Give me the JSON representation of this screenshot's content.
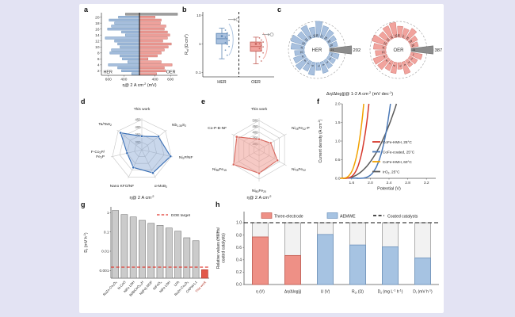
{
  "page": {
    "background": "#E3E3F3",
    "canvas_background": "#FFFFFF"
  },
  "chart_data": [
    {
      "panel": "a",
      "type": "bar-mirrored",
      "xlabel": "η@ 2 A cm^-2^ (mV)",
      "left_label": "HER",
      "right_label": "OER",
      "xticks_left": [
        600,
        400
      ],
      "xticks_right": [
        400,
        600
      ],
      "ytick_rows": [
        2,
        4,
        6,
        8,
        10,
        12,
        14,
        16,
        18,
        20
      ],
      "vmin": 200,
      "vmax": 690,
      "colors": {
        "her": "#A8C0DE",
        "her_border": "#5F88B5",
        "oer": "#F1A39D",
        "oer_border": "#C4625B",
        "highlight": "#9E9E9E",
        "highlight_border": "#6F6F6F"
      },
      "rows": [
        {
          "y": 1,
          "her": 300,
          "oer": 420
        },
        {
          "y": 2,
          "her": 430,
          "oer": 540
        },
        {
          "y": 3,
          "her": 480,
          "oer": 520
        },
        {
          "y": 4,
          "her": 600,
          "oer": 620
        },
        {
          "y": 5,
          "her": 350,
          "oer": 480
        },
        {
          "y": 6,
          "her": 420,
          "oer": 310
        },
        {
          "y": 7,
          "her": 450,
          "oer": 430
        },
        {
          "y": 8,
          "her": 580,
          "oer": 480
        },
        {
          "y": 9,
          "her": 560,
          "oer": 520
        },
        {
          "y": 10,
          "her": 450,
          "oer": 570
        },
        {
          "y": 11,
          "her": 480,
          "oer": 610
        },
        {
          "y": 12,
          "her": 520,
          "oer": 500
        },
        {
          "y": 13,
          "her": 640,
          "oer": 560
        },
        {
          "y": 14,
          "her": 380,
          "oer": 590
        },
        {
          "y": 15,
          "her": 430,
          "oer": 560
        },
        {
          "y": 16,
          "her": 610,
          "oer": 520
        },
        {
          "y": 17,
          "her": 560,
          "oer": 540
        },
        {
          "y": 18,
          "her": 520,
          "oer": 470
        },
        {
          "y": 19,
          "her": 590,
          "oer": 480
        },
        {
          "y": 20,
          "her": 470,
          "oer": 400
        },
        {
          "y": 21,
          "her": 380,
          "oer": 690,
          "highlight": true
        }
      ]
    },
    {
      "panel": "b",
      "type": "box",
      "ylabel": "R~ct~ (Ω cm^2^)",
      "yticks": [
        0.1,
        1,
        10
      ],
      "groups": [
        {
          "label": "HER",
          "color": "#A8C0DE",
          "border": "#5F88B5",
          "box": {
            "low": 0.3,
            "q1": 1.0,
            "median": 1.5,
            "q3": 2.3,
            "high": 3.5
          },
          "outlier": 7,
          "violin": [
            5,
            1.4,
            0.4
          ],
          "points": [
            3.0,
            2.4,
            2.0,
            1.7,
            1.5,
            1.3,
            1.1,
            0.95,
            0.8,
            0.6,
            0.4
          ]
        },
        {
          "label": "OER",
          "color": "#F1A39D",
          "border": "#C4625B",
          "box": {
            "low": 0.2,
            "q1": 0.55,
            "median": 0.8,
            "q3": 1.15,
            "high": 1.7
          },
          "outlier": 2.1,
          "violin": [
            2.4,
            0.8,
            0.3
          ],
          "points": [
            1.6,
            1.35,
            1.15,
            1.0,
            0.88,
            0.78,
            0.68,
            0.58,
            0.48,
            0.35,
            0.25
          ]
        }
      ]
    },
    {
      "panel": "c",
      "type": "polar-bars",
      "caption": "Δη/Δlog|j|@ 1-2 A cm^-2^ (mV dec^-1^)",
      "colors": {
        "her": "#A8C0DE",
        "her_border": "#5F88B5",
        "oer": "#F1A39D",
        "oer_border": "#C4625B",
        "highlight": "#8C8C8C",
        "highlight_border": "#5A5A5A"
      },
      "charts": [
        {
          "label": "HER",
          "annotation": "202",
          "highlight_index": 21,
          "values": [
            0.45,
            0.38,
            0.42,
            0.52,
            0.35,
            0.58,
            0.48,
            0.62,
            0.55,
            0.44,
            0.6,
            0.68,
            0.52,
            0.64,
            0.47,
            0.72,
            0.56,
            0.5,
            0.42,
            0.38,
            1.0
          ]
        },
        {
          "label": "OER",
          "annotation": "387",
          "highlight_index": 21,
          "values": [
            0.52,
            0.4,
            0.34,
            0.56,
            0.3,
            0.5,
            0.45,
            0.6,
            0.64,
            0.48,
            0.56,
            0.7,
            0.52,
            0.62,
            0.68,
            0.5,
            0.44,
            0.58,
            0.4,
            0.34,
            1.0
          ]
        }
      ]
    },
    {
      "panel": "d",
      "type": "radar",
      "caption": "η@ 2 A cm^-2^",
      "ticks": [
        450,
        400,
        350,
        300
      ],
      "rmin": 250,
      "rmax": 460,
      "stroke": "#3A6FB5",
      "fill": "rgba(120,155,205,0.40)",
      "axes": [
        "This work",
        "Nb~1.35~S~2~",
        "Ni~2~P/NF",
        "α-MoB~2~",
        "Nano KFO/NF",
        "F-Co~2~P/|Fe~2~P",
        "Ta/TaS~2~"
      ],
      "values": [
        340,
        390,
        445,
        420,
        380,
        350,
        430
      ]
    },
    {
      "panel": "e",
      "type": "radar",
      "caption": "η@ 2 A cm^-2^",
      "ticks": [
        500,
        450,
        400,
        350,
        300
      ],
      "rmin": 250,
      "rmax": 520,
      "stroke": "#D8685E",
      "fill": "rgba(238,150,140,0.50)",
      "axes": [
        "This work",
        "Ni~78~Fe~22~-P",
        "Ni~78~Fe~22~",
        "Ni~80~Fe~20~",
        "Ni~85~Fe~15~",
        "Co-P-B-NF"
      ],
      "values": [
        340,
        365,
        430,
        450,
        500,
        470
      ]
    },
    {
      "panel": "f",
      "type": "line",
      "xlabel": "Potential (V)",
      "ylabel": "Current density (A cm^-2^)",
      "xrange": [
        1.4,
        3.4
      ],
      "yrange": [
        0,
        2
      ],
      "xticks": [
        1.6,
        2.0,
        2.4,
        2.8,
        3.2
      ],
      "yticks": [
        0.0,
        0.5,
        1.0,
        1.5,
        2.0
      ],
      "series": [
        {
          "name": "CoFe-HMH, 25°C",
          "color": "#D6392C",
          "onset": 1.43,
          "x_at_max": 1.97,
          "power": 3.2
        },
        {
          "name": "CoFe-coated, 25°C",
          "color": "#4B79B7",
          "onset": 1.72,
          "x_at_max": 2.43,
          "power": 3.4
        },
        {
          "name": "CoFe-HMH, 60°C",
          "color": "#F2A200",
          "onset": 1.37,
          "x_at_max": 1.86,
          "power": 3.2
        },
        {
          "name": "IrO~2~, 25°C",
          "color": "#5A5A5A",
          "onset": 1.43,
          "x_at_max": 2.56,
          "power": 2.2
        }
      ]
    },
    {
      "panel": "g",
      "type": "bar-log",
      "ylabel": "D~r~ (mV h^-1^)",
      "yticks": [
        1,
        0.1,
        0.01,
        0.001
      ],
      "ylim": [
        0.0004,
        2
      ],
      "target": {
        "value": 0.0015,
        "label": "DOE target",
        "color": "#E0362C"
      },
      "colors": {
        "bar": "#CBCBCB",
        "bar_border": "#7A7A7A",
        "highlight": "#E2584A",
        "highlight_border": "#B03527"
      },
      "categories": [
        "RuZn-Co~3~O~4~",
        "N-CoO",
        "NiFe LDH",
        "Bi/BiCeO~3.5~H",
        "Ni(Fe) MOF",
        "NiFeO~x~",
        "NiFe LDH",
        "LFA",
        "RuZn-Co~3~O~4~",
        "CAPist-L1",
        "This work"
      ],
      "values": [
        1.3,
        0.8,
        0.6,
        0.4,
        0.28,
        0.22,
        0.16,
        0.11,
        0.05,
        0.035,
        0.0011
      ]
    },
    {
      "panel": "h",
      "type": "bar-relative",
      "ylabel_lines": [
        "Relative values (HMHs/",
        "coated catalysts)"
      ],
      "yticks": [
        0.0,
        0.2,
        0.4,
        0.6,
        0.8,
        1.0
      ],
      "legend": [
        {
          "label": "Three-electrode",
          "color": "#EE9086",
          "border": "#C25A50"
        },
        {
          "label": "AEMWE",
          "color": "#A6C3E2",
          "border": "#6C92BC"
        },
        {
          "label": "Coated catalysts",
          "style": "dashed"
        }
      ],
      "bg_bar": {
        "fill": "#F2F2F2",
        "border": "#909090"
      },
      "categories": [
        "η (V)",
        "Δη/Δlog|j|",
        "U (V)",
        "R~ct~ (Ω)",
        "D~s~ (mg L^-1^ h^-1^)",
        "D~r~ (mV h^-1^)"
      ],
      "values": [
        0.77,
        0.47,
        0.81,
        0.64,
        0.61,
        0.43
      ],
      "groups": [
        "three",
        "three",
        "aemwe",
        "aemwe",
        "aemwe",
        "aemwe"
      ]
    }
  ]
}
